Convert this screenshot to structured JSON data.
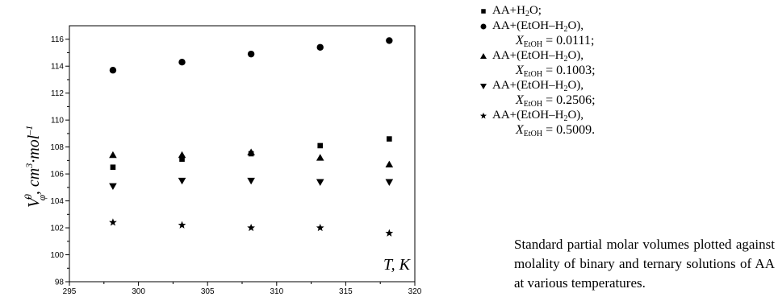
{
  "chart_data": {
    "type": "scatter",
    "xlabel": "T, K",
    "xlim": [
      295,
      320
    ],
    "ylim": [
      98,
      117
    ],
    "x_ticks": [
      295,
      300,
      305,
      310,
      315,
      320
    ],
    "y_ticks": [
      98,
      100,
      102,
      104,
      106,
      108,
      110,
      112,
      114,
      116
    ],
    "grid": false,
    "x": [
      298.15,
      303.15,
      308.15,
      313.15,
      318.15
    ],
    "series": [
      {
        "name": "AA+H2O;",
        "marker": "square",
        "values": [
          106.5,
          107.1,
          107.5,
          108.1,
          108.6
        ]
      },
      {
        "name": "AA+(EtOH–H2O), XEtOH = 0.0111;",
        "marker": "circle",
        "values": [
          113.7,
          114.3,
          114.9,
          115.4,
          115.9
        ]
      },
      {
        "name": "AA+(EtOH–H2O), XEtOH = 0.1003;",
        "marker": "triangle-up",
        "values": [
          107.4,
          107.4,
          107.6,
          107.2,
          106.7
        ]
      },
      {
        "name": "AA+(EtOH–H2O), XEtOH = 0.2506;",
        "marker": "triangle-down",
        "values": [
          105.1,
          105.5,
          105.5,
          105.4,
          105.4
        ]
      },
      {
        "name": "AA+(EtOH–H2O), XEtOH = 0.5009.",
        "marker": "star",
        "values": [
          102.4,
          102.2,
          102.0,
          102.0,
          101.6
        ]
      }
    ]
  },
  "legend": [
    {
      "prefix": "AA+H",
      "sub": "2",
      "suffix": "O;",
      "second": null
    },
    {
      "prefix": "AA+(EtOH–H",
      "sub": "2",
      "suffix": "O),",
      "second": {
        "var": "X",
        "sub": "EtOH",
        "value": " = 0.0111;"
      }
    },
    {
      "prefix": "AA+(EtOH–H",
      "sub": "2",
      "suffix": "O),",
      "second": {
        "var": "X",
        "sub": "EtOH",
        "value": " = 0.1003;"
      }
    },
    {
      "prefix": "AA+(EtOH–H",
      "sub": "2",
      "suffix": "O),",
      "second": {
        "var": "X",
        "sub": "EtOH",
        "value": " = 0.2506;"
      }
    },
    {
      "prefix": "AA+(EtOH–H",
      "sub": "2",
      "suffix": "O),",
      "second": {
        "var": "X",
        "sub": "EtOH",
        "value": " = 0.5009."
      }
    }
  ],
  "ylabel": {
    "base": "V",
    "sup": "0",
    "sub": "φ",
    "text": ", cm",
    "unit_sup": "3",
    "mid": "·mol",
    "end_sup": "–1"
  },
  "caption": "Standard partial molar volumes plotted against molality of binary and ternary solutions of AA at various temperatures."
}
